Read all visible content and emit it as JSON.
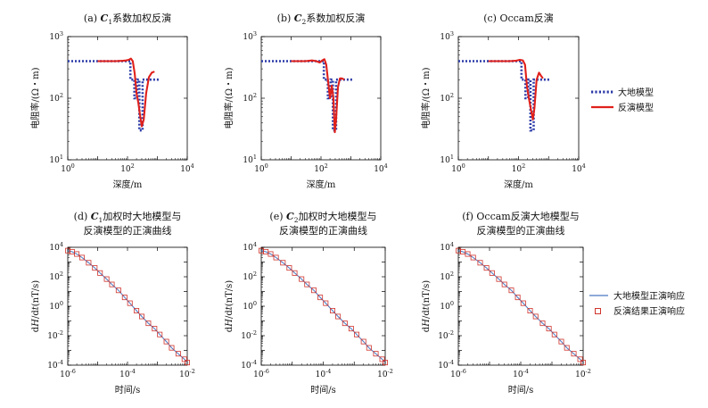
{
  "figure_labels": {
    "left_top": "大地模型",
    "left_bottom": "反演模型",
    "right_top": "大地模型正演响应",
    "right_bottom": "反演结果正演响应"
  },
  "colors": {
    "earth_model": "#2b3aa8",
    "inversion_model": "#e0201b",
    "forward_true": "#4a78c2",
    "forward_inv_marker": "#d0342c",
    "axes": "#000000"
  },
  "chart_data": [
    {
      "type": "line",
      "title": "(a) C1系数加权反演",
      "xlabel": "深度/m",
      "ylabel": "电阻率/(Ω・m)",
      "xscale": "log",
      "yscale": "log",
      "xlim": [
        1,
        10000
      ],
      "ylim": [
        10,
        1000
      ],
      "xticks": [
        "10^0",
        "10^2",
        "10^4"
      ],
      "yticks": [
        "10^1",
        "10^2",
        "10^3"
      ],
      "series": [
        {
          "name": "大地模型",
          "style": "dotted",
          "x": [
            1,
            125,
            125,
            170,
            170,
            210,
            210,
            250,
            250,
            320,
            320,
            450,
            450,
            1100
          ],
          "y": [
            400,
            400,
            200,
            200,
            100,
            100,
            200,
            200,
            30,
            30,
            200,
            200,
            200,
            200
          ]
        },
        {
          "name": "反演模型",
          "style": "solid",
          "x": [
            10,
            40,
            70,
            90,
            110,
            130,
            150,
            175,
            200,
            230,
            260,
            300,
            350,
            420,
            520,
            650,
            800
          ],
          "y": [
            400,
            400,
            405,
            410,
            420,
            440,
            400,
            250,
            120,
            85,
            55,
            35,
            45,
            120,
            220,
            260,
            270
          ]
        }
      ]
    },
    {
      "type": "line",
      "title": "(b) C2系数加权反演",
      "xlabel": "深度/m",
      "ylabel": "电阻率/(Ω・m)",
      "xscale": "log",
      "yscale": "log",
      "xlim": [
        1,
        10000
      ],
      "ylim": [
        10,
        1000
      ],
      "xticks": [
        "10^0",
        "10^2",
        "10^4"
      ],
      "yticks": [
        "10^1",
        "10^2",
        "10^3"
      ],
      "series": [
        {
          "name": "大地模型",
          "style": "dotted",
          "x": [
            1,
            125,
            125,
            170,
            170,
            210,
            210,
            250,
            250,
            320,
            320,
            450,
            450,
            1100
          ],
          "y": [
            400,
            400,
            200,
            200,
            100,
            100,
            200,
            200,
            30,
            30,
            200,
            200,
            200,
            200
          ]
        },
        {
          "name": "反演模型",
          "style": "solid",
          "x": [
            10,
            30,
            50,
            70,
            90,
            110,
            130,
            150,
            175,
            200,
            230,
            260,
            290,
            320,
            370,
            430,
            500,
            600
          ],
          "y": [
            400,
            400,
            410,
            400,
            380,
            410,
            430,
            350,
            180,
            100,
            160,
            100,
            28,
            45,
            150,
            210,
            210,
            200
          ]
        }
      ]
    },
    {
      "type": "line",
      "title": "(c) Occam反演",
      "xlabel": "深度/m",
      "ylabel": "电阻率/(Ω・m)",
      "xscale": "log",
      "yscale": "log",
      "xlim": [
        1,
        10000
      ],
      "ylim": [
        10,
        1000
      ],
      "xticks": [
        "10^0",
        "10^2",
        "10^4"
      ],
      "yticks": [
        "10^1",
        "10^2",
        "10^3"
      ],
      "series": [
        {
          "name": "大地模型",
          "style": "dotted",
          "x": [
            1,
            125,
            125,
            170,
            170,
            210,
            210,
            250,
            250,
            320,
            320,
            450,
            450,
            1100
          ],
          "y": [
            400,
            400,
            200,
            200,
            100,
            100,
            200,
            200,
            30,
            30,
            200,
            200,
            200,
            200
          ]
        },
        {
          "name": "反演模型",
          "style": "solid",
          "x": [
            10,
            50,
            80,
            110,
            140,
            165,
            190,
            220,
            260,
            300,
            340,
            400,
            480,
            560,
            650
          ],
          "y": [
            400,
            400,
            405,
            420,
            410,
            350,
            160,
            100,
            65,
            45,
            70,
            200,
            260,
            230,
            210
          ]
        }
      ]
    },
    {
      "type": "line",
      "title": [
        "(d) C1加权时大地模型与",
        "反演模型的正演曲线"
      ],
      "xlabel": "时间/s",
      "ylabel": "dH/dt/(nT/s)",
      "xscale": "log",
      "yscale": "log",
      "xlim": [
        1e-06,
        0.01
      ],
      "ylim": [
        0.0001,
        10000
      ],
      "xticks": [
        "10^-6",
        "10^-4",
        "10^-2"
      ],
      "yticks": [
        "10^-4",
        "10^-2",
        "10^0",
        "10^2",
        "10^4"
      ],
      "series": [
        {
          "name": "大地模型正演响应",
          "style": "solid",
          "x": [
            1e-06,
            1.4e-06,
            2e-06,
            3e-06,
            5e-06,
            8e-06,
            1.2e-05,
            2e-05,
            3e-05,
            5e-05,
            8e-05,
            0.00012,
            0.0002,
            0.0003,
            0.0005,
            0.0008,
            0.0012,
            0.002,
            0.003,
            0.005,
            0.008,
            0.01
          ],
          "y": [
            6000,
            5000,
            3500,
            2000,
            900,
            400,
            180,
            70,
            30,
            12,
            4,
            1.6,
            0.5,
            0.2,
            0.07,
            0.03,
            0.012,
            0.004,
            0.0015,
            0.0006,
            0.00025,
            0.00015
          ]
        },
        {
          "name": "反演结果正演响应",
          "style": "square-markers",
          "x": [
            1e-06,
            1.4e-06,
            2e-06,
            3e-06,
            5e-06,
            8e-06,
            1.2e-05,
            2e-05,
            3e-05,
            5e-05,
            8e-05,
            0.00012,
            0.0002,
            0.0003,
            0.0005,
            0.0008,
            0.0012,
            0.002,
            0.003,
            0.005,
            0.008,
            0.01
          ],
          "y": [
            6000,
            5000,
            3500,
            2000,
            900,
            400,
            180,
            70,
            30,
            12,
            4,
            1.6,
            0.5,
            0.2,
            0.07,
            0.03,
            0.012,
            0.004,
            0.0015,
            0.0006,
            0.00025,
            0.00015
          ]
        }
      ]
    },
    {
      "type": "line",
      "title": [
        "(e) C2加权时大地模型与",
        "反演模型的正演曲线"
      ],
      "xlabel": "时间/s",
      "ylabel": "dH/dt/(nT/s)",
      "xscale": "log",
      "yscale": "log",
      "xlim": [
        1e-06,
        0.01
      ],
      "ylim": [
        0.0001,
        10000
      ],
      "xticks": [
        "10^-6",
        "10^-4",
        "10^-2"
      ],
      "yticks": [
        "10^-4",
        "10^-2",
        "10^0",
        "10^2",
        "10^4"
      ],
      "series": [
        {
          "name": "大地模型正演响应",
          "style": "solid",
          "x": [
            1e-06,
            1.4e-06,
            2e-06,
            3e-06,
            5e-06,
            8e-06,
            1.2e-05,
            2e-05,
            3e-05,
            5e-05,
            8e-05,
            0.00012,
            0.0002,
            0.0003,
            0.0005,
            0.0008,
            0.0012,
            0.002,
            0.003,
            0.005,
            0.008,
            0.01
          ],
          "y": [
            6000,
            5000,
            3500,
            2000,
            900,
            400,
            180,
            70,
            30,
            12,
            4,
            1.6,
            0.5,
            0.2,
            0.07,
            0.03,
            0.012,
            0.004,
            0.0015,
            0.0006,
            0.00025,
            0.00015
          ]
        },
        {
          "name": "反演结果正演响应",
          "style": "square-markers",
          "x": [
            1e-06,
            1.4e-06,
            2e-06,
            3e-06,
            5e-06,
            8e-06,
            1.2e-05,
            2e-05,
            3e-05,
            5e-05,
            8e-05,
            0.00012,
            0.0002,
            0.0003,
            0.0005,
            0.0008,
            0.0012,
            0.002,
            0.003,
            0.005,
            0.008,
            0.01
          ],
          "y": [
            6000,
            5000,
            3500,
            2000,
            900,
            400,
            180,
            70,
            30,
            12,
            4,
            1.6,
            0.5,
            0.2,
            0.07,
            0.03,
            0.012,
            0.004,
            0.0015,
            0.0006,
            0.00025,
            0.00015
          ]
        }
      ]
    },
    {
      "type": "line",
      "title": [
        "(f) Occam反演大地模型与",
        "反演模型的正演曲线"
      ],
      "xlabel": "时间/s",
      "ylabel": "dH/dt/(nT/s)",
      "xscale": "log",
      "yscale": "log",
      "xlim": [
        1e-06,
        0.01
      ],
      "ylim": [
        0.0001,
        10000
      ],
      "xticks": [
        "10^-6",
        "10^-4",
        "10^-2"
      ],
      "yticks": [
        "10^-4",
        "10^-2",
        "10^0",
        "10^2",
        "10^4"
      ],
      "series": [
        {
          "name": "大地模型正演响应",
          "style": "solid",
          "x": [
            1e-06,
            1.4e-06,
            2e-06,
            3e-06,
            5e-06,
            8e-06,
            1.2e-05,
            2e-05,
            3e-05,
            5e-05,
            8e-05,
            0.00012,
            0.0002,
            0.0003,
            0.0005,
            0.0008,
            0.0012,
            0.002,
            0.003,
            0.005,
            0.008,
            0.01
          ],
          "y": [
            6000,
            5000,
            3500,
            2000,
            900,
            400,
            180,
            70,
            30,
            12,
            4,
            1.6,
            0.5,
            0.2,
            0.07,
            0.03,
            0.012,
            0.004,
            0.0015,
            0.0006,
            0.00025,
            0.00015
          ]
        },
        {
          "name": "反演结果正演响应",
          "style": "square-markers",
          "x": [
            1e-06,
            1.4e-06,
            2e-06,
            3e-06,
            5e-06,
            8e-06,
            1.2e-05,
            2e-05,
            3e-05,
            5e-05,
            8e-05,
            0.00012,
            0.0002,
            0.0003,
            0.0005,
            0.0008,
            0.0012,
            0.002,
            0.003,
            0.005,
            0.008,
            0.01
          ],
          "y": [
            6000,
            5000,
            3500,
            2000,
            900,
            400,
            180,
            70,
            30,
            12,
            4,
            1.6,
            0.5,
            0.2,
            0.07,
            0.03,
            0.012,
            0.004,
            0.0015,
            0.0006,
            0.00025,
            0.00015
          ]
        }
      ]
    }
  ]
}
